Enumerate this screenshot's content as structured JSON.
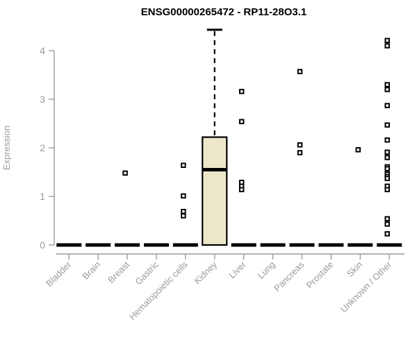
{
  "chart_data": {
    "type": "boxplot",
    "title": "ENSG00000265472 - RP11-28O3.1",
    "ylabel": "Expression",
    "xlabel": "",
    "ylim": [
      0,
      4.45
    ],
    "yticks": [
      0,
      1,
      2,
      3,
      4
    ],
    "grid": false,
    "legend": false,
    "categories": [
      "Bladder",
      "Brain",
      "Breast",
      "Gastric",
      "Hematopoietic cells",
      "Kidney",
      "Liver",
      "Lung",
      "Pancreas",
      "Prostate",
      "Skin",
      "Unknown / Other"
    ],
    "boxes": [
      {
        "category": "Bladder",
        "whisker_low": 0,
        "q1": 0,
        "median": 0,
        "q3": 0,
        "whisker_high": 0,
        "outliers": []
      },
      {
        "category": "Brain",
        "whisker_low": 0,
        "q1": 0,
        "median": 0,
        "q3": 0,
        "whisker_high": 0,
        "outliers": []
      },
      {
        "category": "Breast",
        "whisker_low": 0,
        "q1": 0,
        "median": 0,
        "q3": 0,
        "whisker_high": 0,
        "outliers": [
          1.48
        ]
      },
      {
        "category": "Gastric",
        "whisker_low": 0,
        "q1": 0,
        "median": 0,
        "q3": 0,
        "whisker_high": 0,
        "outliers": []
      },
      {
        "category": "Hematopoietic cells",
        "whisker_low": 0,
        "q1": 0,
        "median": 0,
        "q3": 0,
        "whisker_high": 0,
        "outliers": [
          1.64,
          1.01,
          0.69,
          0.6
        ]
      },
      {
        "category": "Kidney",
        "whisker_low": 0,
        "q1": 0,
        "median": 1.55,
        "q3": 2.22,
        "whisker_high": 4.43,
        "outliers": []
      },
      {
        "category": "Liver",
        "whisker_low": 0,
        "q1": 0,
        "median": 0,
        "q3": 0,
        "whisker_high": 0,
        "outliers": [
          3.16,
          2.54,
          1.29,
          1.21,
          1.14
        ]
      },
      {
        "category": "Lung",
        "whisker_low": 0,
        "q1": 0,
        "median": 0,
        "q3": 0,
        "whisker_high": 0,
        "outliers": []
      },
      {
        "category": "Pancreas",
        "whisker_low": 0,
        "q1": 0,
        "median": 0,
        "q3": 0,
        "whisker_high": 0,
        "outliers": [
          3.57,
          2.06,
          1.9
        ]
      },
      {
        "category": "Prostate",
        "whisker_low": 0,
        "q1": 0,
        "median": 0,
        "q3": 0,
        "whisker_high": 0,
        "outliers": []
      },
      {
        "category": "Skin",
        "whisker_low": 0,
        "q1": 0,
        "median": 0,
        "q3": 0,
        "whisker_high": 0,
        "outliers": [
          1.96
        ]
      },
      {
        "category": "Unknown / Other",
        "whisker_low": 0,
        "q1": 0,
        "median": 0,
        "q3": 0,
        "whisker_high": 0,
        "outliers": [
          4.21,
          4.1,
          3.3,
          3.2,
          2.87,
          2.47,
          2.16,
          1.91,
          1.8,
          1.61,
          1.57,
          1.46,
          1.41,
          1.37,
          1.21,
          1.14,
          0.54,
          0.43,
          0.23
        ]
      }
    ],
    "colors": {
      "background": "#ffffff",
      "box_fill": "#EDE7CA",
      "box_stroke": "#000000",
      "median": "#000000",
      "whisker": "#000000",
      "outlier_stroke": "#000000",
      "outlier_fill": "#ffffff",
      "axis": "#9a9a9a",
      "tick_label": "#9a9a9a",
      "title": "#000000"
    }
  }
}
